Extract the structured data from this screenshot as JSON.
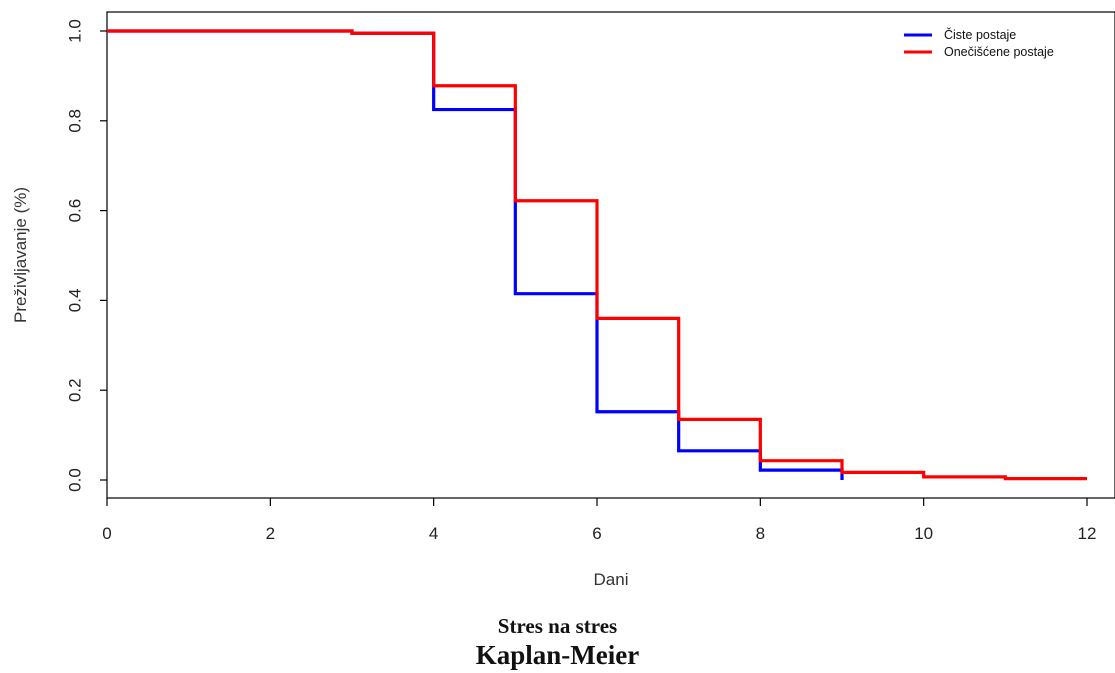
{
  "chart_data": {
    "type": "line",
    "step": true,
    "xlabel": "Dani",
    "ylabel": "Preživljavanje (%)",
    "xlim": [
      0,
      12
    ],
    "ylim": [
      0,
      1
    ],
    "x_ticks": [
      0,
      2,
      4,
      6,
      8,
      10,
      12
    ],
    "y_ticks": [
      "0.0",
      "0.2",
      "0.4",
      "0.6",
      "0.8",
      "1.0"
    ],
    "grid": false,
    "legend": "top-right",
    "series": [
      {
        "name": "Čiste postaje",
        "color": "#0000ff",
        "points": [
          [
            0,
            1.0
          ],
          [
            3,
            0.995
          ],
          [
            4,
            0.825
          ],
          [
            5,
            0.415
          ],
          [
            6,
            0.152
          ],
          [
            7,
            0.065
          ],
          [
            8,
            0.022
          ],
          [
            9,
            0.0
          ]
        ]
      },
      {
        "name": "Onečišćene postaje",
        "color": "#ff0000",
        "points": [
          [
            0,
            1.0
          ],
          [
            3,
            0.995
          ],
          [
            4,
            0.878
          ],
          [
            5,
            0.622
          ],
          [
            6,
            0.36
          ],
          [
            7,
            0.135
          ],
          [
            8,
            0.043
          ],
          [
            9,
            0.017
          ],
          [
            10,
            0.007
          ],
          [
            11,
            0.003
          ],
          [
            12,
            0.003
          ]
        ]
      }
    ]
  },
  "captions": {
    "subtitle": "Stres na stres",
    "title": "Kaplan-Meier"
  }
}
